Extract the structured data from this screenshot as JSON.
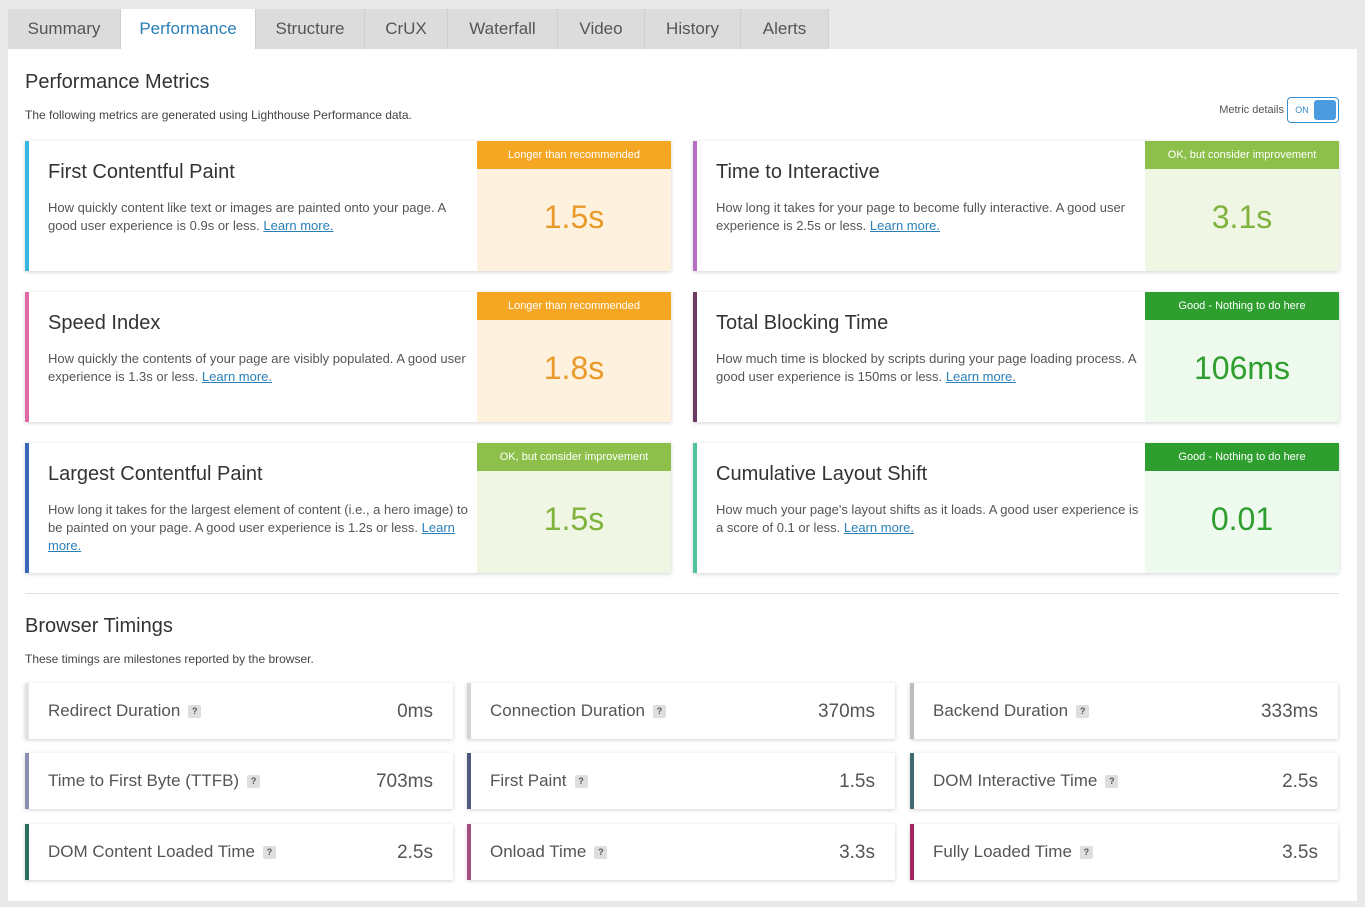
{
  "tabs": [
    "Summary",
    "Performance",
    "Structure",
    "CrUX",
    "Waterfall",
    "Video",
    "History",
    "Alerts"
  ],
  "performance": {
    "title": "Performance Metrics",
    "subtitle": "The following metrics are generated using Lighthouse Performance data.",
    "toggle_label": "Metric details",
    "toggle_state": "ON",
    "learn_more": "Learn more.",
    "metrics": [
      {
        "title": "First Contentful Paint",
        "desc": "How quickly content like text or images are painted onto your page. A good user experience is 0.9s or less.",
        "badge": "Longer than recommended",
        "value": "1.5s",
        "accent": "#38b5e0"
      },
      {
        "title": "Time to Interactive",
        "desc": "How long it takes for your page to become fully interactive. A good user experience is 2.5s or less.",
        "badge": "OK, but consider improvement",
        "value": "3.1s",
        "accent": "#b66fc3"
      },
      {
        "title": "Speed Index",
        "desc": "How quickly the contents of your page are visibly populated. A good user experience is 1.3s or less.",
        "badge": "Longer than recommended",
        "value": "1.8s",
        "accent": "#e06aa8"
      },
      {
        "title": "Total Blocking Time",
        "desc": "How much time is blocked by scripts during your page loading process. A good user experience is 150ms or less.",
        "badge": "Good - Nothing to do here",
        "value": "106ms",
        "accent": "#6a3b62"
      },
      {
        "title": "Largest Contentful Paint",
        "desc": "How long it takes for the largest element of content (i.e., a hero image) to be painted on your page. A good user experience is 1.2s or less.",
        "badge": "OK, but consider improvement",
        "value": "1.5s",
        "accent": "#3a68b8"
      },
      {
        "title": "Cumulative Layout Shift",
        "desc": "How much your page's layout shifts as it loads. A good user experience is a score of 0.1 or less.",
        "badge": "Good - Nothing to do here",
        "value": "0.01",
        "accent": "#4fc39a"
      }
    ]
  },
  "browser": {
    "title": "Browser Timings",
    "subtitle": "These timings are milestones reported by the browser.",
    "help": "?",
    "timings": [
      {
        "label": "Redirect Duration",
        "value": "0ms",
        "accent": "#e4e4e4"
      },
      {
        "label": "Connection Duration",
        "value": "370ms",
        "accent": "#d6d6d6"
      },
      {
        "label": "Backend Duration",
        "value": "333ms",
        "accent": "#bdbdbd"
      },
      {
        "label": "Time to First Byte (TTFB)",
        "value": "703ms",
        "accent": "#8a8fb0"
      },
      {
        "label": "First Paint",
        "value": "1.5s",
        "accent": "#4e5b7f"
      },
      {
        "label": "DOM Interactive Time",
        "value": "2.5s",
        "accent": "#3f6c72"
      },
      {
        "label": "DOM Content Loaded Time",
        "value": "2.5s",
        "accent": "#2d6f5f"
      },
      {
        "label": "Onload Time",
        "value": "3.3s",
        "accent": "#a34f83"
      },
      {
        "label": "Fully Loaded Time",
        "value": "3.5s",
        "accent": "#a3245f"
      }
    ]
  }
}
